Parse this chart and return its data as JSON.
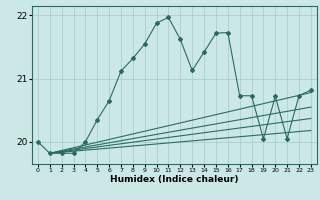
{
  "xlabel": "Humidex (Indice chaleur)",
  "ylabel": "",
  "xlim": [
    -0.5,
    23.5
  ],
  "ylim": [
    19.65,
    22.15
  ],
  "yticks": [
    20,
    21,
    22
  ],
  "xticks": [
    0,
    1,
    2,
    3,
    4,
    5,
    6,
    7,
    8,
    9,
    10,
    11,
    12,
    13,
    14,
    15,
    16,
    17,
    18,
    19,
    20,
    21,
    22,
    23
  ],
  "bg_color": "#cce8e6",
  "grid_color": "#aacfcd",
  "line_color": "#2a6b60",
  "main_line_x": [
    0,
    1,
    2,
    3,
    4,
    5,
    6,
    7,
    8,
    9,
    10,
    11,
    12,
    13,
    14,
    15,
    16,
    17,
    18,
    19,
    20,
    21,
    22,
    23
  ],
  "main_line_y": [
    20.0,
    19.82,
    19.82,
    19.82,
    20.0,
    20.35,
    20.65,
    21.12,
    21.32,
    21.55,
    21.88,
    21.97,
    21.62,
    21.13,
    21.42,
    21.72,
    21.73,
    20.73,
    20.73,
    20.05,
    20.72,
    20.05,
    20.73,
    20.82
  ],
  "trend_lines": [
    {
      "x0": 1,
      "y0": 19.82,
      "x1": 23,
      "y1": 20.78
    },
    {
      "x0": 1,
      "y0": 19.82,
      "x1": 23,
      "y1": 20.55
    },
    {
      "x0": 1,
      "y0": 19.82,
      "x1": 23,
      "y1": 20.37
    },
    {
      "x0": 1,
      "y0": 19.82,
      "x1": 23,
      "y1": 20.18
    }
  ]
}
